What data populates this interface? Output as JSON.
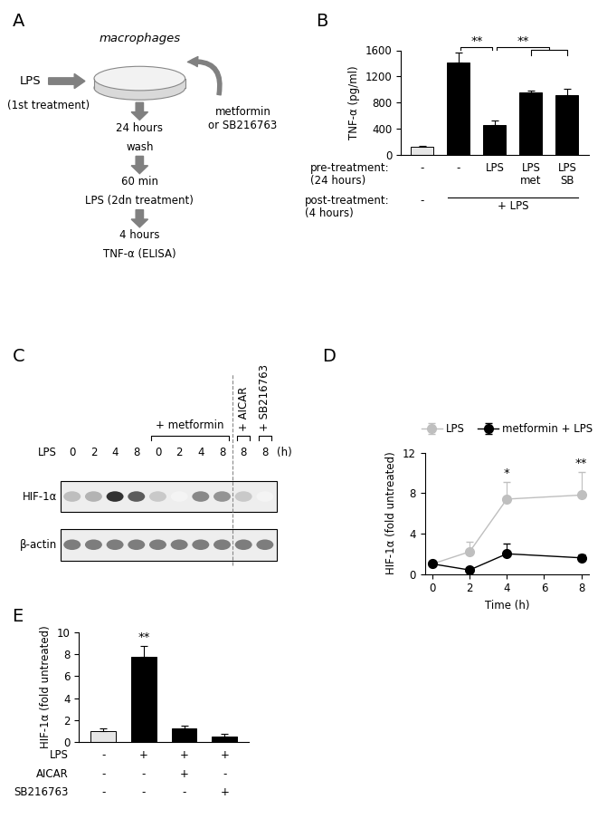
{
  "diagram": {
    "panel": "A",
    "cell_label": "macrophages",
    "input": {
      "label": "LPS",
      "sublabel": "(1st treatment)"
    },
    "additive": "metformin\nor SB216763",
    "steps": [
      [
        "24 hours",
        "wash"
      ],
      [
        "60 min",
        "LPS (2dn treatment)"
      ],
      [
        "4 hours",
        "TNF-α (ELISA)"
      ]
    ]
  },
  "blot": {
    "panel": "C",
    "row_label": "LPS",
    "lanes": [
      0,
      2,
      4,
      8,
      0,
      2,
      4,
      8,
      8,
      8
    ],
    "unit": "(h)",
    "groups": [
      {
        "label": "+ metformin",
        "lanes": [
          4,
          7
        ]
      },
      {
        "label": "+ AICAR",
        "lanes": [
          8,
          8
        ]
      },
      {
        "label": "+ SB216763",
        "lanes": [
          9,
          9
        ]
      }
    ],
    "rows": [
      {
        "label": "HIF-1α",
        "intensity": [
          0.3,
          0.35,
          0.95,
          0.75,
          0.25,
          0.05,
          0.55,
          0.5,
          0.25,
          0.05
        ]
      },
      {
        "label": "β-actin",
        "intensity": [
          0.6,
          0.6,
          0.6,
          0.6,
          0.6,
          0.6,
          0.6,
          0.6,
          0.6,
          0.6
        ]
      }
    ]
  },
  "chart_data": [
    {
      "title": "B",
      "type": "bar",
      "categories": [
        null,
        null,
        null,
        null,
        null
      ],
      "values": [
        120,
        1420,
        460,
        950,
        910
      ],
      "errors": [
        25,
        150,
        70,
        40,
        100
      ],
      "colors": [
        "#e6e6e6",
        "#000000",
        "#000000",
        "#000000",
        "#000000"
      ],
      "ylabel": "TNF-α (pg/ml)",
      "ylim": [
        0,
        1600
      ],
      "yticks": [
        0,
        400,
        800,
        1200,
        1600
      ],
      "tick_labels": "y",
      "significance": [
        {
          "bars": [
            1,
            2
          ],
          "text": "**"
        },
        {
          "bars": [
            2,
            3,
            4
          ],
          "text": "**"
        }
      ],
      "table": [
        {
          "label": "pre-treatment:\n(24 hours)",
          "cells": [
            "-",
            "-",
            "LPS",
            "LPS\nmet",
            "LPS\nSB"
          ]
        },
        {
          "label": "post-treatment:\n(4 hours)",
          "cells": [
            "-"
          ],
          "span": {
            "bars": [
              1,
              4
            ],
            "text": "+ LPS"
          }
        }
      ]
    },
    {
      "title": "D",
      "type": "line",
      "x": [
        0,
        2,
        4,
        8
      ],
      "series": [
        {
          "name": "LPS",
          "color": "#bfbfbf",
          "marker": "o",
          "line_style": "solid",
          "values": [
            1.0,
            2.2,
            7.4,
            7.8
          ],
          "errors": [
            0.1,
            1.0,
            1.7,
            2.3
          ]
        },
        {
          "name": "metformin + LPS",
          "color": "#000000",
          "marker": "o",
          "line_style": "solid",
          "values": [
            1.0,
            0.4,
            2.0,
            1.6
          ],
          "errors": [
            0.1,
            0.2,
            1.0,
            0.3
          ]
        }
      ],
      "xlabel": "Time (h)",
      "ylabel": "HIF-1α (fold untreated)",
      "xlim": [
        -0.4,
        8.4
      ],
      "xticks": [
        0,
        2,
        4,
        6,
        8
      ],
      "ylim": [
        0,
        12
      ],
      "yticks": [
        0,
        4,
        8,
        12
      ],
      "legend": "upper center",
      "annotations": [
        {
          "x": 4,
          "text": "*"
        },
        {
          "x": 8,
          "text": "**"
        }
      ]
    },
    {
      "title": "E",
      "type": "bar",
      "categories": [
        null,
        null,
        null,
        null
      ],
      "values": [
        1.0,
        7.8,
        1.2,
        0.5
      ],
      "errors": [
        0.2,
        1.0,
        0.3,
        0.25
      ],
      "colors": [
        "#e6e6e6",
        "#000000",
        "#000000",
        "#000000"
      ],
      "ylabel": "HIF-1α (fold untreated)",
      "ylim": [
        0,
        10
      ],
      "yticks": [
        0,
        2,
        4,
        6,
        8,
        10
      ],
      "tick_labels": "y",
      "significance": [
        {
          "bars": [
            1
          ],
          "text": "**"
        }
      ],
      "table": [
        {
          "label": "LPS",
          "cells": [
            "-",
            "+",
            "+",
            "+"
          ]
        },
        {
          "label": "AICAR",
          "cells": [
            "-",
            "-",
            "+",
            "-"
          ]
        },
        {
          "label": "SB216763",
          "cells": [
            "-",
            "-",
            "-",
            "+"
          ]
        }
      ]
    }
  ]
}
